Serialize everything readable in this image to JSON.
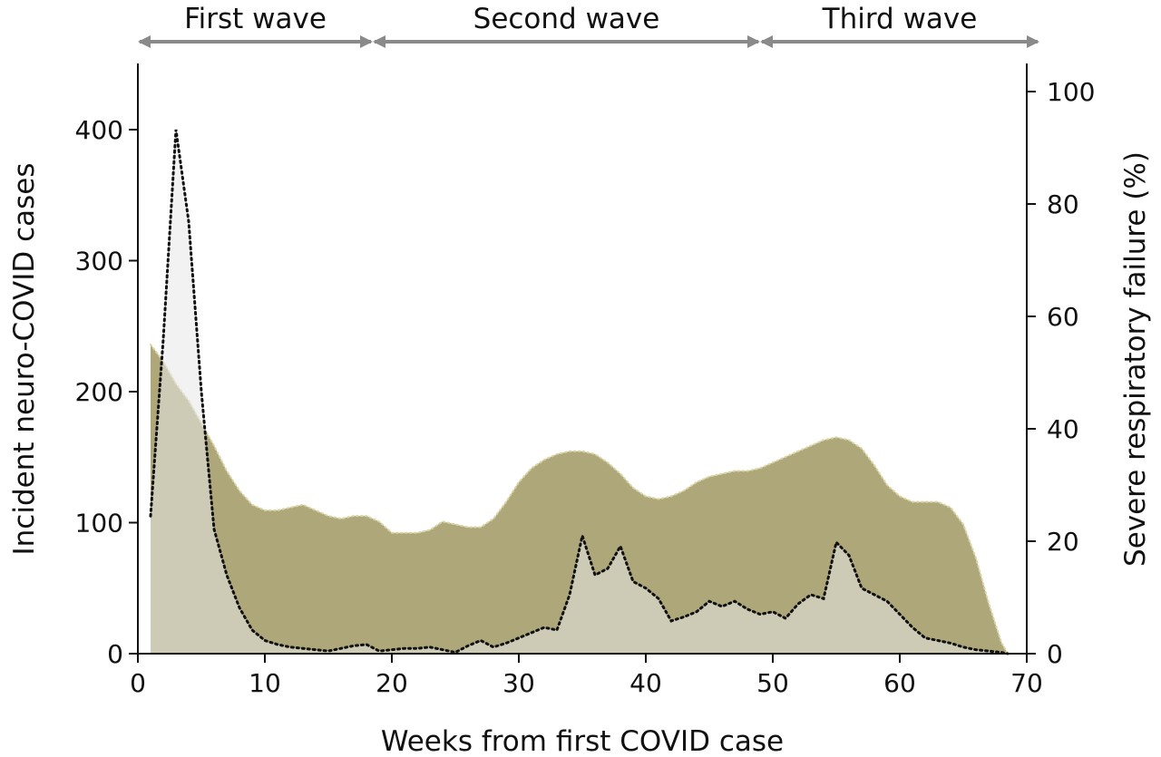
{
  "chart_data": {
    "type": "area",
    "xlabel": "Weeks from first COVID case",
    "ylabel_left": "Incident neuro-COVID cases",
    "ylabel_right": "Severe respiratory failure (%)",
    "xlim": [
      0,
      70
    ],
    "ylim_left": [
      0,
      450
    ],
    "ylim_right": [
      0,
      105
    ],
    "x_ticks": [
      0,
      10,
      20,
      30,
      40,
      50,
      60,
      70
    ],
    "y_ticks_left": [
      0,
      100,
      200,
      300,
      400
    ],
    "y_ticks_right": [
      0,
      20,
      40,
      60,
      80,
      100
    ],
    "grid": false,
    "waves": [
      {
        "label": "First wave",
        "start": 0,
        "end": 18.5
      },
      {
        "label": "Second wave",
        "start": 18.5,
        "end": 49
      },
      {
        "label": "Third wave",
        "start": 49,
        "end": 71
      }
    ],
    "series": [
      {
        "axis": "right",
        "style": "filled area with dotted outline",
        "color": "#aea77a",
        "x": [
          1,
          2,
          3,
          4,
          5,
          6,
          7,
          8,
          9,
          10,
          11,
          12,
          13,
          14,
          15,
          16,
          17,
          18,
          19,
          20,
          21,
          22,
          23,
          24,
          25,
          26,
          27,
          28,
          29,
          30,
          31,
          32,
          33,
          34,
          35,
          36,
          37,
          38,
          39,
          40,
          41,
          42,
          43,
          44,
          45,
          46,
          47,
          48,
          49,
          50,
          51,
          52,
          53,
          54,
          55,
          56,
          57,
          58,
          59,
          60,
          61,
          62,
          63,
          64,
          65,
          66,
          67,
          68,
          68.5
        ],
        "values": [
          55,
          52,
          48,
          45,
          41,
          37,
          32.5,
          29,
          26.5,
          25.5,
          25.5,
          26,
          26.5,
          25.5,
          24.5,
          24,
          24.5,
          24.5,
          23.5,
          21.5,
          21.5,
          21.5,
          22,
          23.5,
          23,
          22.5,
          22.5,
          24,
          27,
          30.5,
          33,
          34.5,
          35.5,
          36,
          36,
          35.5,
          34,
          32,
          29.5,
          28,
          27.5,
          28,
          29,
          30.5,
          31.5,
          32,
          32.5,
          32.5,
          33,
          34,
          35,
          36,
          37,
          38,
          38.5,
          38,
          36.5,
          33.5,
          30,
          28,
          27,
          27,
          27,
          26,
          23,
          17,
          9,
          2,
          0
        ]
      },
      {
        "axis": "left",
        "style": "light filled area with dotted outline",
        "color": "#e8e8e8",
        "x": [
          1,
          2,
          3,
          4,
          5,
          6,
          7,
          8,
          9,
          10,
          11,
          12,
          13,
          14,
          15,
          16,
          17,
          18,
          19,
          20,
          21,
          22,
          23,
          24,
          25,
          26,
          27,
          28,
          29,
          30,
          31,
          32,
          33,
          34,
          35,
          36,
          37,
          38,
          39,
          40,
          41,
          42,
          43,
          44,
          45,
          46,
          47,
          48,
          49,
          50,
          51,
          52,
          53,
          54,
          55,
          56,
          57,
          58,
          59,
          60,
          61,
          62,
          63,
          64,
          65,
          66,
          67,
          68,
          68.5
        ],
        "values": [
          105,
          240,
          400,
          330,
          200,
          95,
          60,
          35,
          18,
          10,
          7,
          5,
          4,
          3,
          2,
          4,
          6,
          7,
          2,
          3,
          4,
          4,
          5,
          3,
          1,
          6,
          10,
          5,
          8,
          12,
          16,
          20,
          18,
          45,
          90,
          60,
          65,
          82,
          55,
          50,
          42,
          25,
          28,
          32,
          40,
          36,
          40,
          34,
          30,
          32,
          27,
          38,
          45,
          42,
          85,
          75,
          50,
          45,
          40,
          30,
          20,
          12,
          10,
          8,
          5,
          3,
          2,
          1,
          0
        ]
      }
    ]
  }
}
